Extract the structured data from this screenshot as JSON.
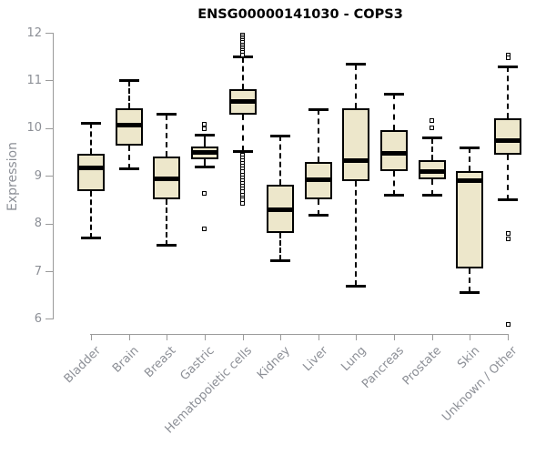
{
  "title": "ENSG00000141030 - COPS3",
  "y_axis": {
    "label": "Expression"
  },
  "chart_data": {
    "type": "boxplot",
    "title": "ENSG00000141030 - COPS3",
    "xlabel": "",
    "ylabel": "Expression",
    "ylim": [
      6,
      12
    ],
    "yticks": [
      6,
      7,
      8,
      9,
      10,
      11,
      12
    ],
    "grid": false,
    "legend": false,
    "box_fill_color": "#EDE7CB",
    "box_line_color": "#000000",
    "axis_color": "#9b9b9b",
    "tick_label_color": "#8c8f96",
    "categories": [
      "Bladder",
      "Brain",
      "Breast",
      "Gastric",
      "Hematopoietic cells",
      "Kidney",
      "Liver",
      "Lung",
      "Pancreas",
      "Prostate",
      "Skin",
      "Unknown / Other"
    ],
    "series": [
      {
        "name": "Bladder",
        "whisker_low": 7.7,
        "q1": 8.68,
        "median": 9.18,
        "q3": 9.48,
        "whisker_high": 10.12,
        "outliers": []
      },
      {
        "name": "Brain",
        "whisker_low": 9.15,
        "q1": 9.65,
        "median": 10.07,
        "q3": 10.43,
        "whisker_high": 11.0,
        "outliers": []
      },
      {
        "name": "Breast",
        "whisker_low": 7.55,
        "q1": 8.52,
        "median": 8.95,
        "q3": 9.42,
        "whisker_high": 10.3,
        "outliers": []
      },
      {
        "name": "Gastric",
        "whisker_low": 9.2,
        "q1": 9.35,
        "median": 9.5,
        "q3": 9.62,
        "whisker_high": 9.86,
        "outliers": [
          10.1,
          10.0,
          8.65,
          7.9
        ]
      },
      {
        "name": "Hematopoietic cells",
        "whisker_low": 9.52,
        "q1": 10.29,
        "median": 10.56,
        "q3": 10.82,
        "whisker_high": 11.5,
        "outliers": [
          11.96,
          11.92,
          11.88,
          11.84,
          11.8,
          11.76,
          11.72,
          11.68,
          11.64,
          11.6,
          11.55,
          9.45,
          9.39,
          9.33,
          9.27,
          9.21,
          9.15,
          9.09,
          9.03,
          8.97,
          8.91,
          8.85,
          8.79,
          8.73,
          8.67,
          8.61,
          8.55,
          8.5,
          8.44
        ]
      },
      {
        "name": "Kidney",
        "whisker_low": 7.23,
        "q1": 7.82,
        "median": 8.3,
        "q3": 8.83,
        "whisker_high": 9.85,
        "outliers": []
      },
      {
        "name": "Liver",
        "whisker_low": 8.18,
        "q1": 8.52,
        "median": 8.92,
        "q3": 9.3,
        "whisker_high": 10.4,
        "outliers": []
      },
      {
        "name": "Lung",
        "whisker_low": 6.7,
        "q1": 8.9,
        "median": 9.32,
        "q3": 10.42,
        "whisker_high": 11.35,
        "outliers": []
      },
      {
        "name": "Pancreas",
        "whisker_low": 8.6,
        "q1": 9.1,
        "median": 9.49,
        "q3": 9.97,
        "whisker_high": 10.73,
        "outliers": []
      },
      {
        "name": "Prostate",
        "whisker_low": 8.6,
        "q1": 8.93,
        "median": 9.1,
        "q3": 9.33,
        "whisker_high": 9.8,
        "outliers": [
          10.17,
          10.02
        ]
      },
      {
        "name": "Skin",
        "whisker_low": 6.57,
        "q1": 7.07,
        "median": 8.9,
        "q3": 9.1,
        "whisker_high": 9.6,
        "outliers": []
      },
      {
        "name": "Unknown / Other",
        "whisker_low": 8.5,
        "q1": 9.45,
        "median": 9.75,
        "q3": 10.22,
        "whisker_high": 11.3,
        "outliers": [
          11.55,
          11.48,
          7.8,
          7.68,
          5.9
        ]
      }
    ]
  }
}
